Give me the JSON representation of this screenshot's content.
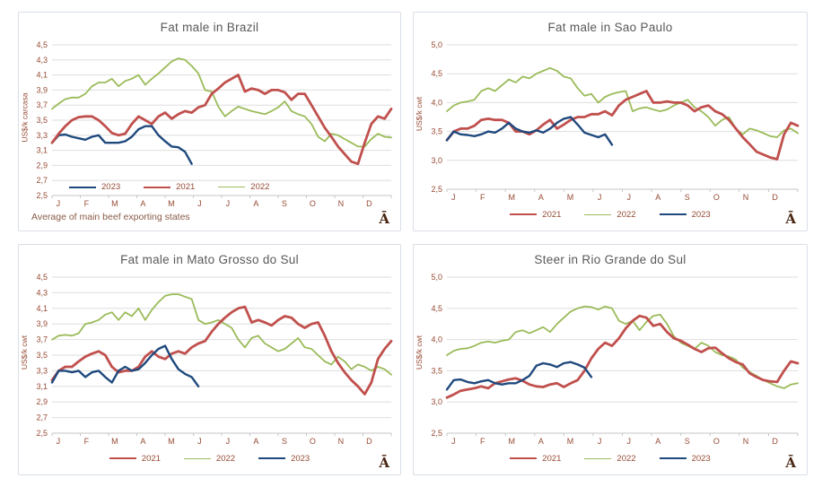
{
  "page": {
    "background": "#ffffff",
    "panel_border": "#d9dfe8"
  },
  "colors": {
    "series_2021": "#C0504D",
    "series_2022": "#9BBB59",
    "series_2023": "#1F497D",
    "gridline": "#dedede",
    "axis_line": "#c6c6c6",
    "axis_text": "#964B35",
    "title_text": "#595959",
    "watermark_text": "#4A2511"
  },
  "chart_data": [
    {
      "type": "line",
      "title": "Fat male in Brazil",
      "ylabel": "US$/k carcasa",
      "ylim": [
        2.5,
        4.5
      ],
      "yticks": [
        2.5,
        2.7,
        2.9,
        3.1,
        3.3,
        3.5,
        3.7,
        3.9,
        4.1,
        4.3,
        4.5
      ],
      "ytick_labels": [
        "2,5",
        "2,7",
        "2,9",
        "3,1",
        "3,3",
        "3,5",
        "3,7",
        "3,9",
        "4,1",
        "4,3",
        "4,5"
      ],
      "x_axis": [
        "J",
        "F",
        "M",
        "A",
        "M",
        "J",
        "J",
        "A",
        "S",
        "O",
        "N",
        "D"
      ],
      "grid": true,
      "legend": [
        "2023",
        "2021",
        "2022"
      ],
      "legend_position": "inside-bottom-left",
      "footnote": "Average  of main beef exporting states",
      "watermark": "Ā",
      "series": [
        {
          "name": "2022",
          "color": "#9BBB59",
          "values": [
            3.65,
            3.72,
            3.78,
            3.8,
            3.8,
            3.85,
            3.95,
            4.0,
            4.0,
            4.05,
            3.95,
            4.02,
            4.05,
            4.1,
            3.97,
            4.05,
            4.12,
            4.2,
            4.28,
            4.32,
            4.3,
            4.22,
            4.12,
            3.9,
            3.88,
            3.68,
            3.55,
            3.62,
            3.68,
            3.65,
            3.62,
            3.6,
            3.58,
            3.62,
            3.67,
            3.75,
            3.62,
            3.58,
            3.55,
            3.45,
            3.28,
            3.22,
            3.32,
            3.3,
            3.25,
            3.2,
            3.15,
            3.15,
            3.25,
            3.32,
            3.28,
            3.27
          ]
        },
        {
          "name": "2023",
          "color": "#1F497D",
          "values": [
            3.2,
            3.3,
            3.31,
            3.28,
            3.26,
            3.24,
            3.28,
            3.3,
            3.2,
            3.2,
            3.2,
            3.22,
            3.28,
            3.38,
            3.42,
            3.42,
            3.3,
            3.22,
            3.15,
            3.14,
            3.08,
            2.92
          ]
        },
        {
          "name": "2021",
          "color": "#C0504D",
          "values": [
            3.2,
            3.32,
            3.42,
            3.5,
            3.54,
            3.55,
            3.55,
            3.5,
            3.42,
            3.33,
            3.3,
            3.32,
            3.45,
            3.55,
            3.5,
            3.45,
            3.55,
            3.6,
            3.52,
            3.58,
            3.62,
            3.6,
            3.67,
            3.7,
            3.85,
            3.92,
            4.0,
            4.05,
            4.1,
            3.88,
            3.92,
            3.9,
            3.85,
            3.9,
            3.9,
            3.87,
            3.77,
            3.85,
            3.85,
            3.7,
            3.55,
            3.4,
            3.28,
            3.15,
            3.05,
            2.95,
            2.92,
            3.2,
            3.45,
            3.55,
            3.52,
            3.65
          ]
        }
      ]
    },
    {
      "type": "line",
      "title": "Fat male in Sao Paulo",
      "ylabel": "US$/k cwt",
      "ylim": [
        2.5,
        5.0
      ],
      "yticks": [
        2.5,
        3.0,
        3.5,
        4.0,
        4.5,
        5.0
      ],
      "ytick_labels": [
        "2,5",
        "3,0",
        "3,5",
        "4,0",
        "4,5",
        "5,0"
      ],
      "x_axis": [
        "J",
        "F",
        "M",
        "A",
        "M",
        "J",
        "J",
        "A",
        "S",
        "O",
        "N",
        "D"
      ],
      "grid": true,
      "legend": [
        "2021",
        "2022",
        "2023"
      ],
      "legend_position": "below-center",
      "footnote": "",
      "watermark": "Ā",
      "series": [
        {
          "name": "2022",
          "color": "#9BBB59",
          "values": [
            3.85,
            3.95,
            4.0,
            4.02,
            4.05,
            4.2,
            4.25,
            4.2,
            4.3,
            4.4,
            4.35,
            4.45,
            4.42,
            4.5,
            4.55,
            4.6,
            4.55,
            4.45,
            4.42,
            4.25,
            4.12,
            4.15,
            4.0,
            4.1,
            4.15,
            4.18,
            4.2,
            3.85,
            3.9,
            3.92,
            3.88,
            3.85,
            3.88,
            3.95,
            4.0,
            4.05,
            3.92,
            3.85,
            3.75,
            3.6,
            3.7,
            3.75,
            3.55,
            3.45,
            3.55,
            3.52,
            3.47,
            3.42,
            3.4,
            3.52,
            3.55,
            3.47
          ]
        },
        {
          "name": "2021",
          "color": "#C0504D",
          "values": [
            3.35,
            3.5,
            3.55,
            3.55,
            3.6,
            3.7,
            3.72,
            3.7,
            3.7,
            3.65,
            3.5,
            3.5,
            3.45,
            3.52,
            3.62,
            3.7,
            3.55,
            3.62,
            3.7,
            3.75,
            3.75,
            3.8,
            3.8,
            3.85,
            3.78,
            3.95,
            4.05,
            4.1,
            4.15,
            4.2,
            4.0,
            4.0,
            4.02,
            4.0,
            4.0,
            3.95,
            3.85,
            3.92,
            3.95,
            3.85,
            3.8,
            3.7,
            3.55,
            3.4,
            3.28,
            3.15,
            3.1,
            3.05,
            3.02,
            3.45,
            3.65,
            3.6
          ]
        },
        {
          "name": "2023",
          "color": "#1F497D",
          "values": [
            3.35,
            3.5,
            3.45,
            3.44,
            3.42,
            3.45,
            3.5,
            3.48,
            3.55,
            3.65,
            3.55,
            3.5,
            3.48,
            3.52,
            3.48,
            3.55,
            3.65,
            3.72,
            3.75,
            3.62,
            3.48,
            3.44,
            3.4,
            3.45,
            3.27
          ]
        }
      ]
    },
    {
      "type": "line",
      "title": "Fat male in Mato Grosso do Sul",
      "ylabel": "US$/k cwt",
      "ylim": [
        2.5,
        4.5
      ],
      "yticks": [
        2.5,
        2.7,
        2.9,
        3.1,
        3.3,
        3.5,
        3.7,
        3.9,
        4.1,
        4.3,
        4.5
      ],
      "ytick_labels": [
        "2,5",
        "2,7",
        "2,9",
        "3,1",
        "3,3",
        "3,5",
        "3,7",
        "3,9",
        "4,1",
        "4,3",
        "4,5"
      ],
      "x_axis": [
        "J",
        "F",
        "M",
        "A",
        "M",
        "J",
        "J",
        "A",
        "S",
        "O",
        "N",
        "D"
      ],
      "grid": true,
      "legend": [
        "2021",
        "2022",
        "2023"
      ],
      "legend_position": "below-center",
      "footnote": "",
      "watermark": "Ā",
      "series": [
        {
          "name": "2022",
          "color": "#9BBB59",
          "values": [
            3.7,
            3.75,
            3.76,
            3.75,
            3.78,
            3.9,
            3.92,
            3.95,
            4.02,
            4.05,
            3.95,
            4.05,
            4.0,
            4.1,
            3.95,
            4.08,
            4.18,
            4.26,
            4.28,
            4.28,
            4.25,
            4.22,
            3.95,
            3.9,
            3.92,
            3.95,
            3.9,
            3.85,
            3.7,
            3.6,
            3.72,
            3.75,
            3.65,
            3.6,
            3.55,
            3.58,
            3.65,
            3.72,
            3.6,
            3.58,
            3.5,
            3.42,
            3.38,
            3.48,
            3.42,
            3.32,
            3.38,
            3.35,
            3.3,
            3.35,
            3.32,
            3.25
          ]
        },
        {
          "name": "2021",
          "color": "#C0504D",
          "values": [
            3.18,
            3.3,
            3.35,
            3.35,
            3.42,
            3.48,
            3.52,
            3.55,
            3.5,
            3.35,
            3.28,
            3.3,
            3.3,
            3.35,
            3.48,
            3.55,
            3.48,
            3.45,
            3.52,
            3.55,
            3.52,
            3.6,
            3.65,
            3.68,
            3.8,
            3.9,
            3.98,
            4.05,
            4.1,
            4.12,
            3.92,
            3.95,
            3.92,
            3.88,
            3.95,
            4.0,
            3.98,
            3.9,
            3.85,
            3.9,
            3.92,
            3.75,
            3.55,
            3.4,
            3.28,
            3.18,
            3.1,
            3.0,
            3.15,
            3.45,
            3.58,
            3.68
          ]
        },
        {
          "name": "2023",
          "color": "#1F497D",
          "values": [
            3.15,
            3.3,
            3.3,
            3.28,
            3.3,
            3.22,
            3.28,
            3.3,
            3.22,
            3.15,
            3.3,
            3.35,
            3.3,
            3.32,
            3.4,
            3.5,
            3.58,
            3.62,
            3.45,
            3.32,
            3.26,
            3.22,
            3.1
          ]
        }
      ]
    },
    {
      "type": "line",
      "title": "Steer in Rio Grande do Sul",
      "ylabel": "US$/k cwt",
      "ylim": [
        2.5,
        5.0
      ],
      "yticks": [
        2.5,
        3.0,
        3.5,
        4.0,
        4.5,
        5.0
      ],
      "ytick_labels": [
        "2,5",
        "3,0",
        "3,5",
        "4,0",
        "4,5",
        "5,0"
      ],
      "x_axis": [
        "J",
        "F",
        "M",
        "A",
        "M",
        "J",
        "J",
        "A",
        "S",
        "O",
        "N",
        "D"
      ],
      "grid": true,
      "legend": [
        "2021",
        "2022",
        "2023"
      ],
      "legend_position": "below-center",
      "footnote": "",
      "watermark": "Ā",
      "series": [
        {
          "name": "2022",
          "color": "#9BBB59",
          "values": [
            3.75,
            3.82,
            3.85,
            3.86,
            3.9,
            3.95,
            3.97,
            3.95,
            3.98,
            4.0,
            4.12,
            4.15,
            4.1,
            4.15,
            4.2,
            4.12,
            4.25,
            4.35,
            4.45,
            4.5,
            4.53,
            4.52,
            4.48,
            4.53,
            4.5,
            4.3,
            4.25,
            4.3,
            4.15,
            4.28,
            4.38,
            4.4,
            4.25,
            4.05,
            3.95,
            3.9,
            3.85,
            3.95,
            3.9,
            3.8,
            3.75,
            3.73,
            3.68,
            3.55,
            3.48,
            3.42,
            3.35,
            3.3,
            3.25,
            3.22,
            3.28,
            3.3
          ]
        },
        {
          "name": "2021",
          "color": "#C0504D",
          "values": [
            3.07,
            3.12,
            3.18,
            3.2,
            3.22,
            3.25,
            3.22,
            3.3,
            3.33,
            3.36,
            3.38,
            3.34,
            3.28,
            3.25,
            3.24,
            3.28,
            3.3,
            3.24,
            3.3,
            3.35,
            3.5,
            3.7,
            3.85,
            3.95,
            3.9,
            4.02,
            4.18,
            4.3,
            4.38,
            4.35,
            4.22,
            4.25,
            4.12,
            4.02,
            3.98,
            3.92,
            3.85,
            3.8,
            3.86,
            3.87,
            3.78,
            3.7,
            3.64,
            3.6,
            3.46,
            3.4,
            3.35,
            3.33,
            3.32,
            3.5,
            3.65,
            3.62
          ]
        },
        {
          "name": "2023",
          "color": "#1F497D",
          "values": [
            3.2,
            3.35,
            3.36,
            3.32,
            3.3,
            3.33,
            3.35,
            3.3,
            3.28,
            3.3,
            3.3,
            3.35,
            3.42,
            3.58,
            3.62,
            3.6,
            3.56,
            3.62,
            3.64,
            3.6,
            3.55,
            3.4
          ]
        }
      ]
    }
  ]
}
